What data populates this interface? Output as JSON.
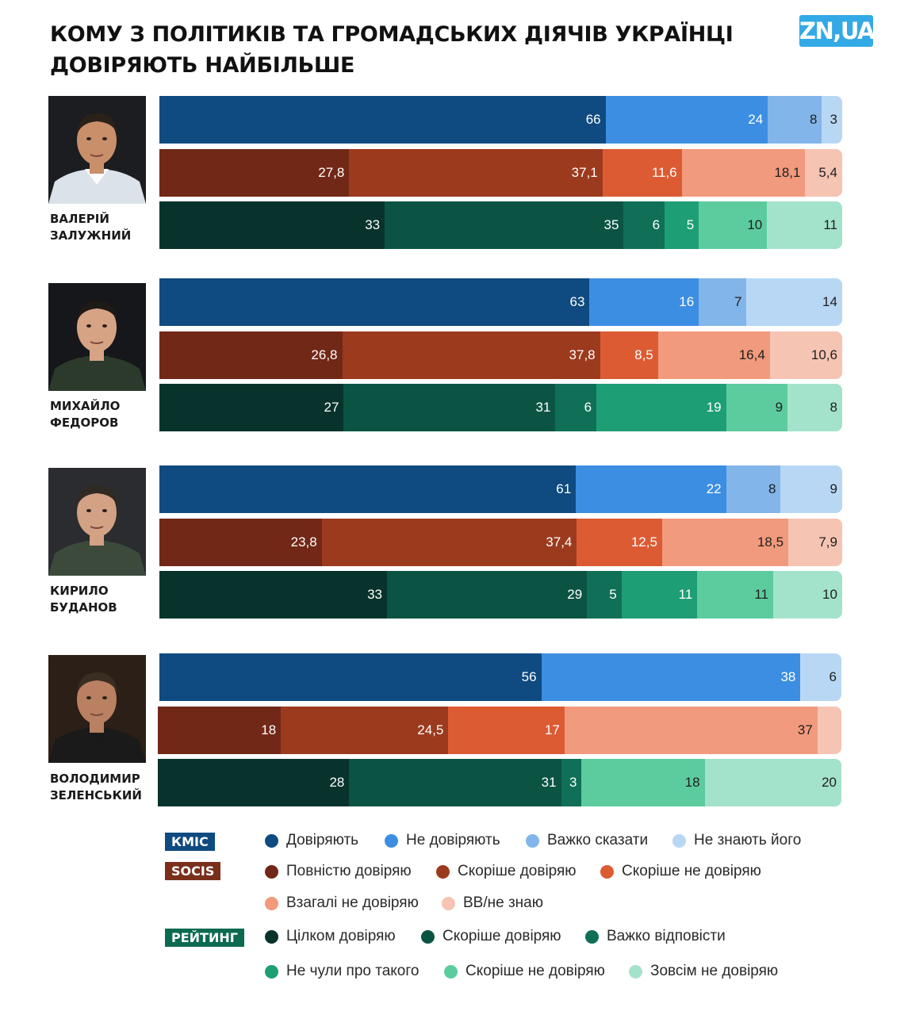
{
  "title_lines": [
    "КОМУ З ПОЛІТИКІВ ТА ГРОМАДСЬКИХ ДІЯЧІВ УКРАЇНЦІ",
    "ДОВІРЯЮТЬ НАЙБІЛЬШЕ"
  ],
  "logo_text": "ZN,UA",
  "sources": {
    "kmis": {
      "label": "КМІС",
      "color": "#0f4a80"
    },
    "socis": {
      "label": "SOCIS",
      "color": "#7a2f1b"
    },
    "rating": {
      "label": "РЕЙТИНГ",
      "color": "#0c6a50"
    }
  },
  "chart_data": {
    "type": "bar",
    "stacked": true,
    "orientation": "horizontal",
    "xlim": [
      0,
      100
    ],
    "title": "КОМУ З ПОЛІТИКІВ ТА ГРОМАДСЬКИХ ДІЯЧІВ УКРАЇНЦІ ДОВІРЯЮТЬ НАЙБІЛЬШЕ",
    "legend": {
      "kmis": [
        {
          "label": "Довіряють",
          "color": "#0f4a80"
        },
        {
          "label": "Не довіряють",
          "color": "#3c8ee2"
        },
        {
          "label": "Важко сказати",
          "color": "#82b5ea"
        },
        {
          "label": "Не знають його",
          "color": "#b8d7f4"
        }
      ],
      "socis": [
        {
          "label": "Повністю довіряю",
          "color": "#722817"
        },
        {
          "label": "Скоріше довіряю",
          "color": "#9c3a1e"
        },
        {
          "label": "Скоріше не довіряю",
          "color": "#dc5b33"
        },
        {
          "label": "Взагалі не довіряю",
          "color": "#f29a7d"
        },
        {
          "label": "ВВ/не знаю",
          "color": "#f6c4b3"
        }
      ],
      "rating": [
        {
          "label": "Цілком довіряю",
          "color": "#08332c"
        },
        {
          "label": "Скоріше довіряю",
          "color": "#0b5443"
        },
        {
          "label": "Важко відповісти",
          "color": "#0f7057"
        },
        {
          "label": "Не чули про такого",
          "color": "#1e9e74"
        },
        {
          "label": "Скоріше не довіряю",
          "color": "#5ccc9f"
        },
        {
          "label": "Зовсім не довіряю",
          "color": "#a4e3cb"
        }
      ]
    },
    "people": [
      {
        "name_lines": [
          "ВАЛЕРІЙ",
          "ЗАЛУЖНИЙ"
        ],
        "kmis": [
          66,
          24,
          8,
          3
        ],
        "kmis_labels": [
          "66",
          "24",
          "8",
          "3"
        ],
        "socis": [
          27.8,
          37.1,
          11.6,
          18.1,
          5.4
        ],
        "socis_labels": [
          "27,8",
          "37,1",
          "11,6",
          "18,1",
          "5,4"
        ],
        "rating": [
          33,
          35,
          6,
          5,
          10,
          11
        ],
        "rating_labels": [
          "33",
          "35",
          "6",
          "5",
          "10",
          "11"
        ],
        "rating_keys": [
          0,
          1,
          2,
          3,
          4,
          5
        ]
      },
      {
        "name_lines": [
          "МИХАЙЛО",
          "ФЕДОРОВ"
        ],
        "kmis": [
          63,
          16,
          7,
          14
        ],
        "kmis_labels": [
          "63",
          "16",
          "7",
          "14"
        ],
        "socis": [
          26.8,
          37.8,
          8.5,
          16.4,
          10.6
        ],
        "socis_labels": [
          "26,8",
          "37,8",
          "8,5",
          "16,4",
          "10,6"
        ],
        "rating": [
          27,
          31,
          6,
          19,
          9,
          8
        ],
        "rating_labels": [
          "27",
          "31",
          "6",
          "19",
          "9",
          "8"
        ],
        "rating_keys": [
          0,
          1,
          2,
          3,
          4,
          5
        ]
      },
      {
        "name_lines": [
          "КИРИЛО",
          "БУДАНОВ"
        ],
        "kmis": [
          61,
          22,
          8,
          9
        ],
        "kmis_labels": [
          "61",
          "22",
          "8",
          "9"
        ],
        "socis": [
          23.8,
          37.4,
          12.5,
          18.5,
          7.9
        ],
        "socis_labels": [
          "23,8",
          "37,4",
          "12,5",
          "18,5",
          "7,9"
        ],
        "rating": [
          33,
          29,
          5,
          11,
          11,
          10
        ],
        "rating_labels": [
          "33",
          "29",
          "5",
          "11",
          "11",
          "10"
        ],
        "rating_keys": [
          0,
          1,
          2,
          3,
          4,
          5
        ]
      },
      {
        "name_lines": [
          "ВОЛОДИМИР",
          "ЗЕЛЕНСЬКИЙ"
        ],
        "kmis": [
          56,
          38,
          6
        ],
        "kmis_labels": [
          "56",
          "38",
          "6"
        ],
        "kmis_keys": [
          0,
          1,
          3
        ],
        "socis": [
          18,
          24.5,
          17,
          37,
          3.5
        ],
        "socis_labels": [
          "18",
          "24,5",
          "17",
          "37",
          ""
        ],
        "rating": [
          28,
          31,
          3,
          18,
          20
        ],
        "rating_labels": [
          "28",
          "31",
          "3",
          "18",
          "20"
        ],
        "rating_keys": [
          0,
          1,
          2,
          4,
          5
        ]
      }
    ]
  }
}
